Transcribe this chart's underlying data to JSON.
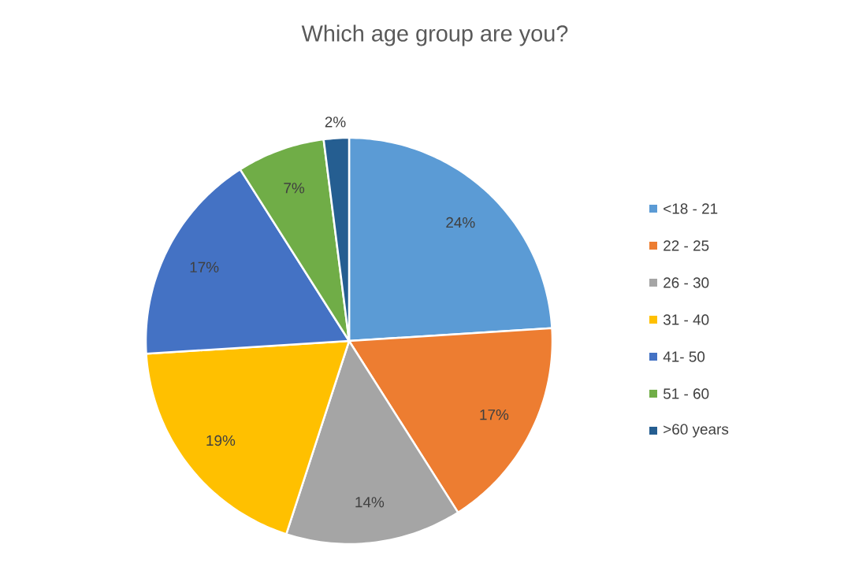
{
  "chart_data": {
    "type": "pie",
    "title": "Which age group are you?",
    "categories": [
      "<18 - 21",
      "22 - 25",
      "26 - 30",
      "31 - 40",
      "41- 50",
      "51 - 60",
      ">60 years"
    ],
    "values": [
      24,
      17,
      14,
      19,
      17,
      7,
      2
    ],
    "value_labels": [
      "24%",
      "17%",
      "14%",
      "19%",
      "17%",
      "7%",
      "2%"
    ],
    "colors": [
      "#5b9bd5",
      "#ed7d31",
      "#a5a5a5",
      "#ffc000",
      "#4472c4",
      "#70ad47",
      "#255e91"
    ],
    "legend": "right"
  }
}
